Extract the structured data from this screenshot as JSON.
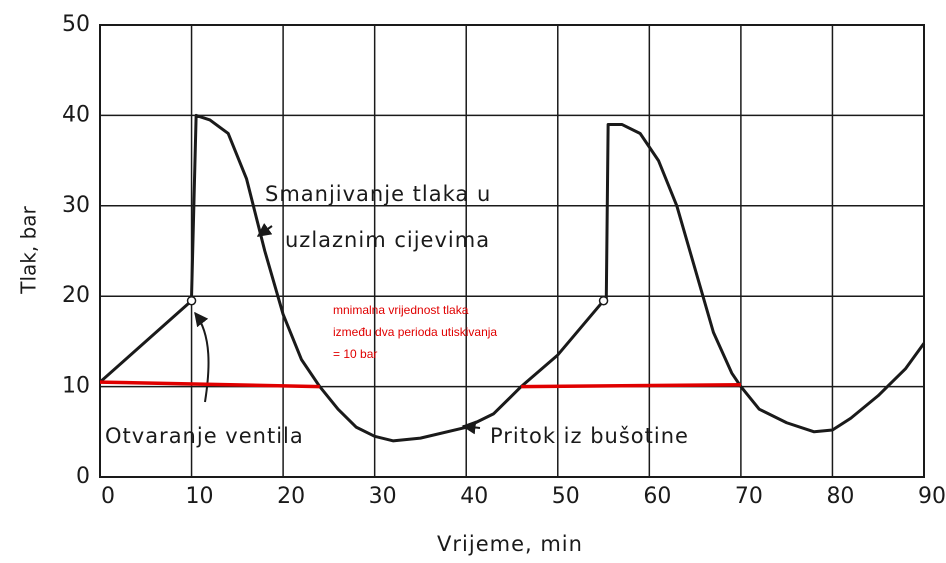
{
  "chart_data": {
    "type": "line",
    "xlabel": "Vrijeme, min",
    "ylabel": "Tlak, bar",
    "xlim": [
      0,
      90
    ],
    "ylim": [
      0,
      50
    ],
    "xticks": [
      0,
      10,
      20,
      30,
      40,
      50,
      60,
      70,
      80,
      90
    ],
    "yticks": [
      0,
      10,
      20,
      30,
      40,
      50
    ],
    "grid": true,
    "series": [
      {
        "color": "#1a1a1a",
        "x": [
          0,
          10,
          10,
          10.5,
          12,
          14,
          16,
          18,
          20,
          22,
          24,
          26,
          28,
          30,
          32,
          35,
          40,
          43,
          46,
          50,
          55,
          55.3,
          55.5,
          57,
          59,
          61,
          63,
          65,
          67,
          69,
          70,
          72,
          75,
          78,
          80,
          82,
          85,
          88,
          90
        ],
        "values": [
          10.5,
          19.5,
          20,
          40,
          39.5,
          38,
          33,
          25,
          18,
          13,
          10,
          7.5,
          5.5,
          4.5,
          4,
          4.3,
          5.5,
          7,
          10,
          13.5,
          19.5,
          19.8,
          39,
          39,
          38,
          35,
          30,
          23,
          16,
          11.5,
          10,
          7.5,
          6,
          5,
          5.2,
          6.5,
          9,
          12,
          14.8
        ]
      },
      {
        "color": "#e00000",
        "x": [
          0,
          24
        ],
        "values": [
          10.5,
          10
        ]
      },
      {
        "color": "#e00000",
        "x": [
          46,
          70
        ],
        "values": [
          10,
          10.2
        ]
      }
    ],
    "markers": {
      "x": [
        10,
        55
      ],
      "values": [
        19.5,
        19.5
      ]
    },
    "annotations": [
      {
        "lines": [
          "Smanjivanje tlaka u",
          "uzlaznim cijevima"
        ]
      },
      {
        "lines": [
          "Otvaranje ventila"
        ]
      },
      {
        "lines": [
          "Pritok iz bušotine"
        ]
      },
      {
        "lines": [
          "mnimalna vrijednost tlaka",
          "između dva perioda utiskivanja",
          "= 10 bar"
        ]
      }
    ]
  }
}
